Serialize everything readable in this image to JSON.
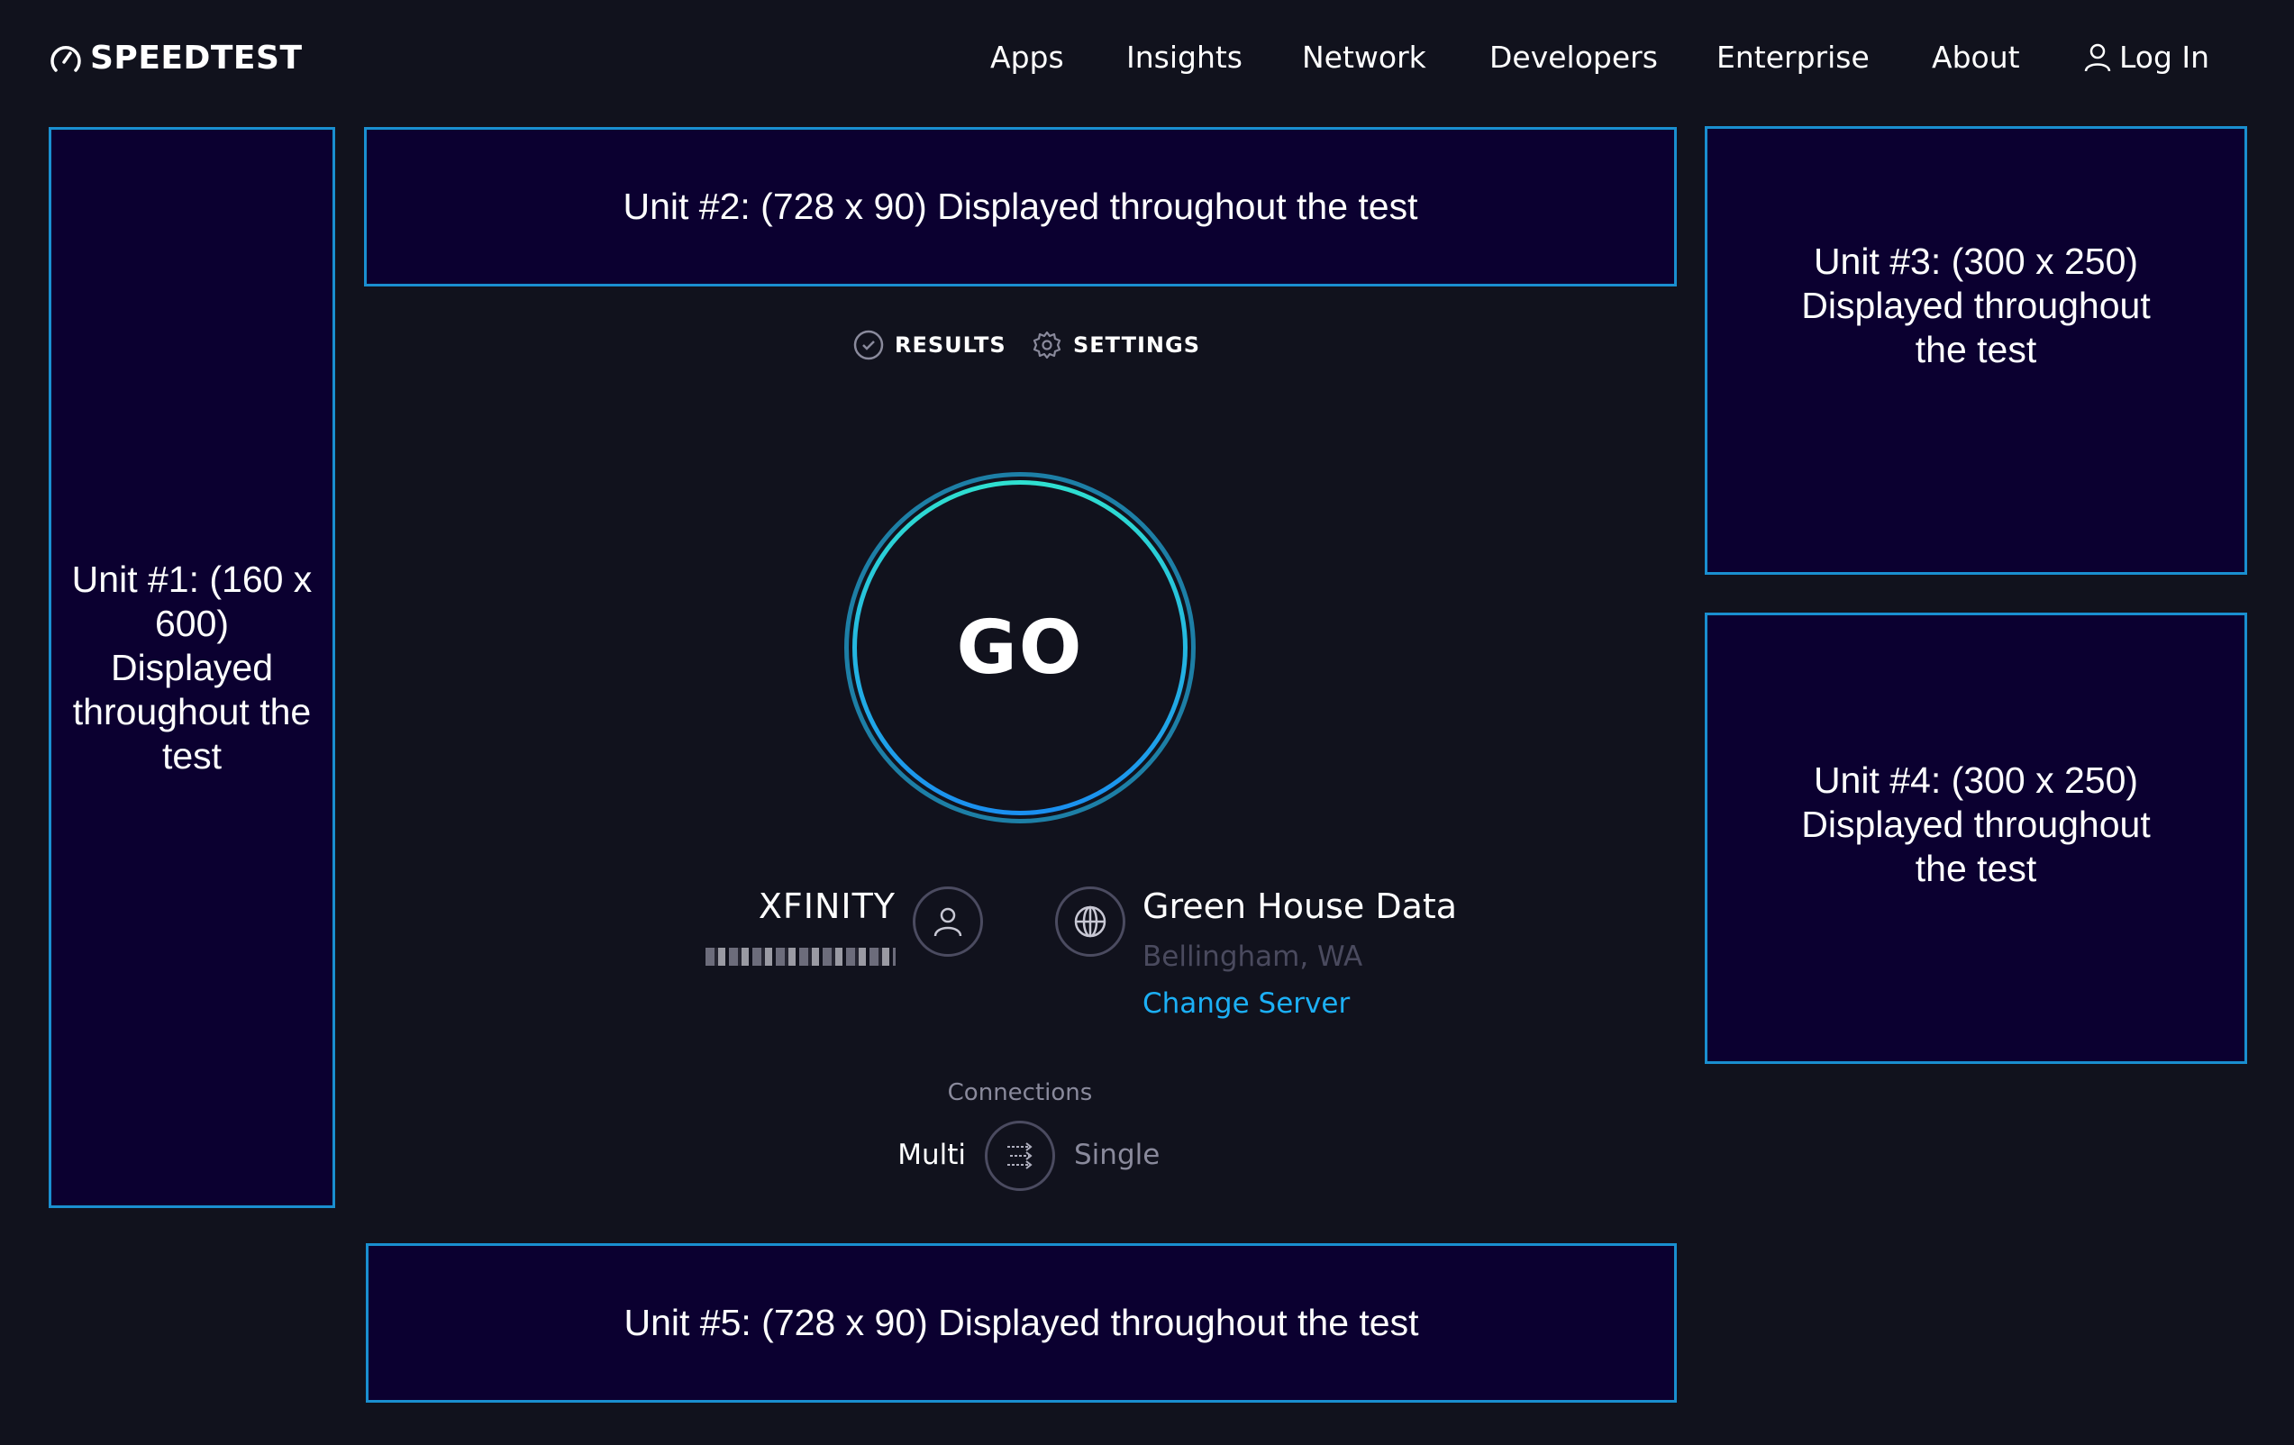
{
  "header": {
    "logo_text": "SPEEDTEST",
    "nav": [
      {
        "label": "Apps"
      },
      {
        "label": "Insights"
      },
      {
        "label": "Network"
      },
      {
        "label": "Developers"
      },
      {
        "label": "Enterprise"
      },
      {
        "label": "About"
      }
    ],
    "login_label": "Log In"
  },
  "ads": {
    "unit1": "Unit #1: (160 x 600) Displayed throughout the test",
    "unit2": "Unit #2: (728 x 90) Displayed throughout the test",
    "unit3": "Unit #3: (300 x 250) Displayed throughout the test",
    "unit4": "Unit #4: (300 x 250) Displayed throughout the test",
    "unit5": "Unit #5: (728 x 90) Displayed throughout the test"
  },
  "tabs": {
    "results": "RESULTS",
    "settings": "SETTINGS"
  },
  "go_label": "GO",
  "isp": {
    "name": "XFINITY"
  },
  "server": {
    "name": "Green House Data",
    "location": "Bellingham, WA",
    "change_label": "Change Server"
  },
  "connections": {
    "label": "Connections",
    "multi": "Multi",
    "single": "Single",
    "selected": "Multi"
  },
  "colors": {
    "background": "#11121d",
    "ad_bg": "#0b0030",
    "ad_border": "#1a8fd0",
    "link": "#1cb0f6",
    "muted": "#4a4a5e"
  }
}
